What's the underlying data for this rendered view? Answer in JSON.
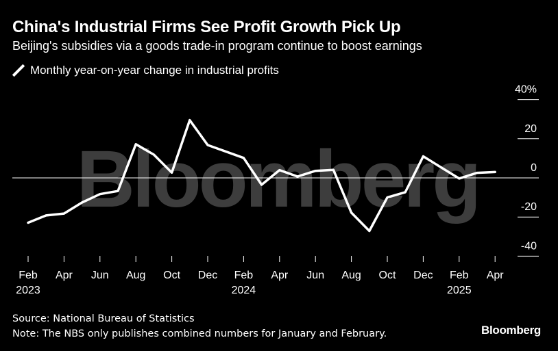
{
  "header": {
    "title": "China's Industrial Firms See Profit Growth Pick Up",
    "subtitle": "Beijing's subsidies via a goods trade-in program continue to boost earnings"
  },
  "legend": {
    "label": "Monthly year-on-year change in industrial profits"
  },
  "watermark": "Bloomberg",
  "footer": {
    "source": "Source: National Bureau of Statistics",
    "note": "Note: The NBS only publishes combined numbers for January and February.",
    "brand": "Bloomberg"
  },
  "colors": {
    "background": "#000000",
    "line": "#ffffff",
    "watermark": "#3d3d3d",
    "zero_line": "#ffffff"
  },
  "chart_data": {
    "type": "line",
    "title": "China's Industrial Firms See Profit Growth Pick Up",
    "series": [
      {
        "name": "Monthly year-on-year change in industrial profits",
        "x": [
          "2023-02",
          "2023-03",
          "2023-04",
          "2023-05",
          "2023-06",
          "2023-07",
          "2023-08",
          "2023-09",
          "2023-10",
          "2023-11",
          "2023-12",
          "2024-01",
          "2024-02",
          "2024-03",
          "2024-04",
          "2024-05",
          "2024-06",
          "2024-07",
          "2024-08",
          "2024-09",
          "2024-10",
          "2024-11",
          "2024-12",
          "2025-01",
          "2025-02",
          "2025-03",
          "2025-04"
        ],
        "values": [
          -22.9,
          -19.2,
          -18.2,
          -12.6,
          -8.3,
          -6.7,
          17.2,
          11.9,
          2.7,
          29.5,
          16.8,
          null,
          10.2,
          -3.5,
          4.0,
          0.7,
          3.6,
          4.1,
          -17.8,
          -27.1,
          -10.0,
          -7.3,
          11.0,
          null,
          -0.3,
          2.6,
          3.0
        ]
      }
    ],
    "x_ticks": [
      {
        "month": "Feb",
        "year": "2023",
        "x": "2023-02"
      },
      {
        "month": "Apr",
        "year": "",
        "x": "2023-04"
      },
      {
        "month": "Jun",
        "year": "",
        "x": "2023-06"
      },
      {
        "month": "Aug",
        "year": "",
        "x": "2023-08"
      },
      {
        "month": "Oct",
        "year": "",
        "x": "2023-10"
      },
      {
        "month": "Dec",
        "year": "",
        "x": "2023-12"
      },
      {
        "month": "Feb",
        "year": "2024",
        "x": "2024-02"
      },
      {
        "month": "Apr",
        "year": "",
        "x": "2024-04"
      },
      {
        "month": "Jun",
        "year": "",
        "x": "2024-06"
      },
      {
        "month": "Aug",
        "year": "",
        "x": "2024-08"
      },
      {
        "month": "Oct",
        "year": "",
        "x": "2024-10"
      },
      {
        "month": "Dec",
        "year": "",
        "x": "2024-12"
      },
      {
        "month": "Feb",
        "year": "2025",
        "x": "2025-02"
      },
      {
        "month": "Apr",
        "year": "",
        "x": "2025-04"
      }
    ],
    "y_ticks": [
      40,
      20,
      0,
      -20,
      -40
    ],
    "y_tick_labels": [
      "40%",
      "20",
      "0",
      "-20",
      "-40"
    ],
    "ylim": [
      -45,
      45
    ],
    "grid": false,
    "legend_position": "top-left",
    "y_axis_side": "right"
  }
}
